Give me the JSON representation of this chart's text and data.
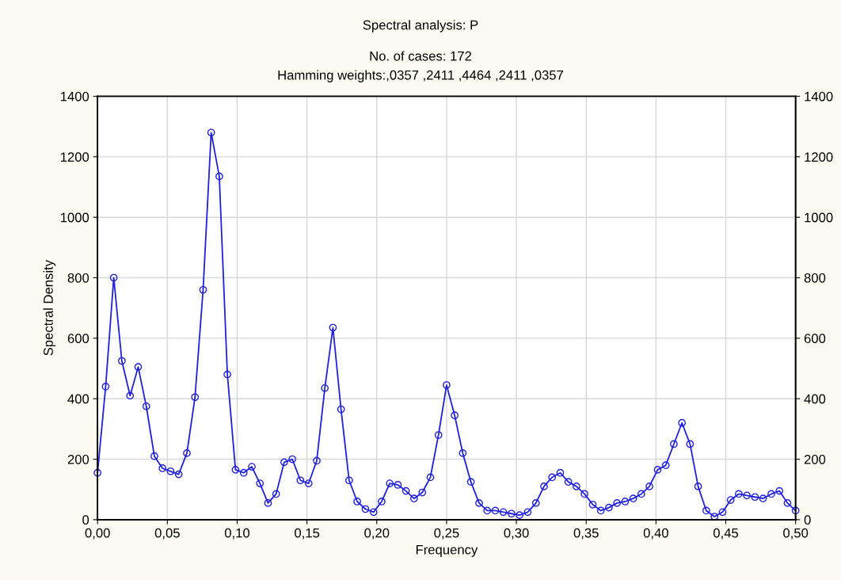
{
  "chart_data": {
    "type": "line",
    "title": "Spectral analysis: P",
    "subtitle": "No. of cases: 172\nHamming weights:,0357 ,2411 ,4464 ,2411 ,0357",
    "xlabel": "Frequency",
    "ylabel": "Spectral Density",
    "x": [
      0,
      0.0058,
      0.0116,
      0.0174,
      0.0233,
      0.0291,
      0.0349,
      0.0407,
      0.0465,
      0.0523,
      0.0581,
      0.064,
      0.0698,
      0.0756,
      0.0814,
      0.0872,
      0.093,
      0.0988,
      0.1047,
      0.1105,
      0.1163,
      0.1221,
      0.1279,
      0.1337,
      0.1395,
      0.1453,
      0.1512,
      0.157,
      0.1628,
      0.1686,
      0.1744,
      0.1802,
      0.186,
      0.1919,
      0.1977,
      0.2035,
      0.2093,
      0.2151,
      0.2209,
      0.2267,
      0.2326,
      0.2384,
      0.2442,
      0.25,
      0.2558,
      0.2616,
      0.2674,
      0.2733,
      0.2791,
      0.2849,
      0.2907,
      0.2965,
      0.3023,
      0.3081,
      0.314,
      0.3198,
      0.3256,
      0.3314,
      0.3372,
      0.343,
      0.3488,
      0.3547,
      0.3605,
      0.3663,
      0.3721,
      0.3779,
      0.3837,
      0.3895,
      0.3953,
      0.4012,
      0.407,
      0.4128,
      0.4186,
      0.4244,
      0.4302,
      0.436,
      0.4419,
      0.4477,
      0.4535,
      0.4593,
      0.4651,
      0.4709,
      0.4767,
      0.4826,
      0.4884,
      0.4942,
      0.5
    ],
    "series": [
      {
        "color": "#2020e0",
        "values": [
          155,
          440,
          800,
          525,
          410,
          505,
          375,
          210,
          170,
          160,
          150,
          220,
          405,
          760,
          1280,
          1135,
          480,
          165,
          155,
          175,
          120,
          55,
          85,
          190,
          200,
          130,
          120,
          195,
          435,
          635,
          365,
          130,
          60,
          35,
          25,
          60,
          120,
          115,
          95,
          70,
          90,
          140,
          280,
          445,
          345,
          220,
          125,
          55,
          30,
          30,
          25,
          20,
          15,
          25,
          55,
          110,
          140,
          155,
          125,
          110,
          85,
          50,
          30,
          40,
          55,
          60,
          70,
          85,
          110,
          165,
          180,
          250,
          320,
          250,
          110,
          30,
          10,
          25,
          65,
          85,
          80,
          75,
          70,
          85,
          95,
          55,
          30
        ]
      }
    ],
    "xlim": [
      0,
      0.5
    ],
    "xticks": [
      {
        "value": 0,
        "label": "0,00"
      },
      {
        "value": 0.05,
        "label": "0,05"
      },
      {
        "value": 0.1,
        "label": "0,10"
      },
      {
        "value": 0.15,
        "label": "0,15"
      },
      {
        "value": 0.2,
        "label": "0,20"
      },
      {
        "value": 0.25,
        "label": "0,25"
      },
      {
        "value": 0.3,
        "label": "0,30"
      },
      {
        "value": 0.35,
        "label": "0,35"
      },
      {
        "value": 0.4,
        "label": "0,40"
      },
      {
        "value": 0.45,
        "label": "0,45"
      },
      {
        "value": 0.5,
        "label": "0,50"
      }
    ],
    "ylim": [
      0,
      1400
    ],
    "yticks": [
      0,
      200,
      400,
      600,
      800,
      1000,
      1200,
      1400
    ],
    "y2lim": [
      0,
      1400
    ],
    "y2ticks": [
      0,
      200,
      400,
      600,
      800,
      1000,
      1200,
      1400
    ],
    "grid": true,
    "marker": "circle",
    "line_style": "solid",
    "legend": false
  }
}
